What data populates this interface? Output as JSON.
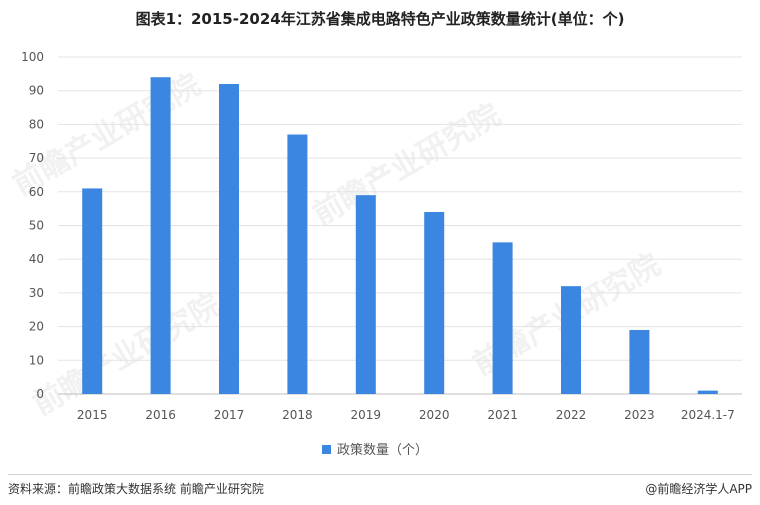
{
  "title": "图表1：2015-2024年江苏省集成电路特色产业政策数量统计(单位：个)",
  "source": "资料来源：前瞻政策大数据系统 前瞻产业研究院",
  "brand": "@前瞻经济学人APP",
  "watermark": "前瞻产业研究院",
  "chart_data": {
    "type": "bar",
    "title": "图表1：2015-2024年江苏省集成电路特色产业政策数量统计(单位：个)",
    "categories": [
      "2015",
      "2016",
      "2017",
      "2018",
      "2019",
      "2020",
      "2021",
      "2022",
      "2023",
      "2024.1-7"
    ],
    "series": [
      {
        "name": "政策数量（个）",
        "values": [
          61,
          94,
          92,
          77,
          59,
          54,
          45,
          32,
          19,
          1
        ],
        "color": "#3a86e0"
      }
    ],
    "ylim": [
      0,
      100
    ],
    "yticks": [
      0,
      10,
      20,
      30,
      40,
      50,
      60,
      70,
      80,
      90,
      100
    ],
    "grid": true,
    "legend_position": "bottom-center"
  }
}
